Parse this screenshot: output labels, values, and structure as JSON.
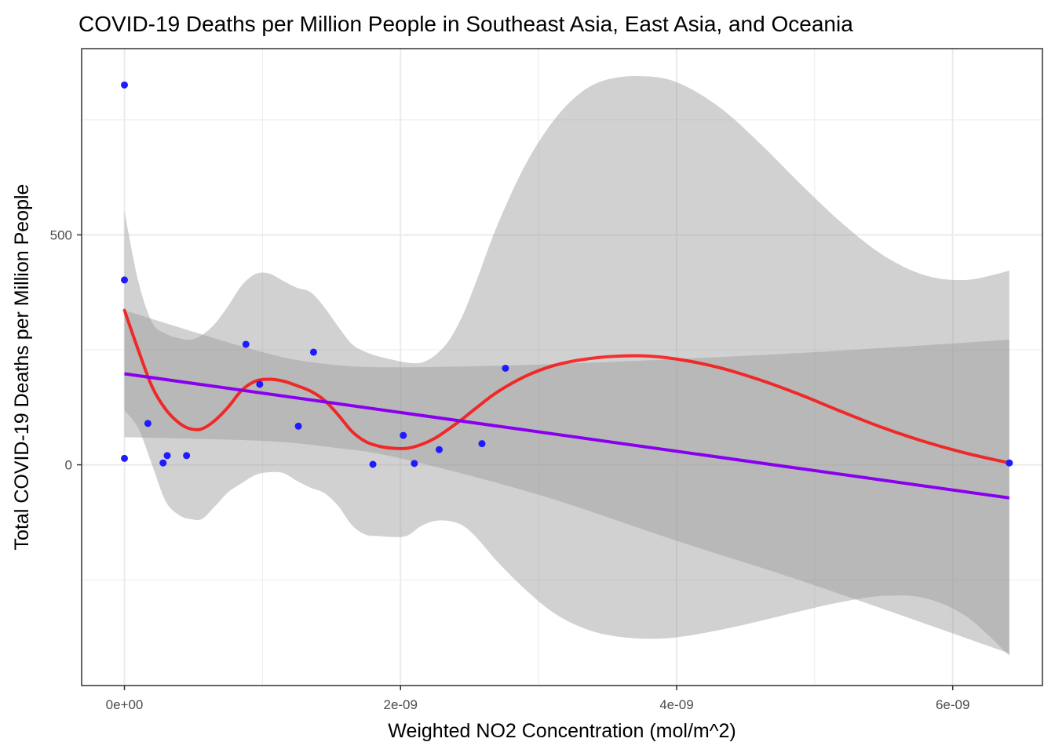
{
  "chart_data": {
    "type": "scatter",
    "title": "COVID-19 Deaths per Million People in Southeast Asia, East Asia, and Oceania",
    "xlabel": "Weighted NO2 Concentration (mol/m^2)",
    "ylabel": "Total COVID-19 Deaths per Million People",
    "xlim": [
      -3.1e-10,
      6.65e-09
    ],
    "ylim": [
      -480,
      905
    ],
    "grid": true,
    "legend": "none",
    "x_ticks": [
      {
        "value": 0,
        "label": "0e+00"
      },
      {
        "value": 2e-09,
        "label": "2e-09"
      },
      {
        "value": 4e-09,
        "label": "4e-09"
      },
      {
        "value": 6e-09,
        "label": "6e-09"
      }
    ],
    "y_ticks": [
      {
        "value": 0,
        "label": "0"
      },
      {
        "value": 500,
        "label": "500"
      }
    ],
    "x_minor_grid": [
      1e-09,
      3e-09,
      5e-09
    ],
    "y_minor_grid": [
      -250,
      250,
      750
    ],
    "colors": {
      "points": "#1f1aff",
      "loess_line": "#ff0000",
      "linear_fit": "#8800ee",
      "ribbon": "#999999",
      "grid": "#ebebeb"
    },
    "points": [
      {
        "x": 0,
        "y": 826
      },
      {
        "x": 0,
        "y": 402
      },
      {
        "x": 0,
        "y": 14
      },
      {
        "x": 1.7e-10,
        "y": 90
      },
      {
        "x": 2.8e-10,
        "y": 4
      },
      {
        "x": 3.1e-10,
        "y": 20
      },
      {
        "x": 4.5e-10,
        "y": 20
      },
      {
        "x": 8.8e-10,
        "y": 262
      },
      {
        "x": 9.8e-10,
        "y": 175
      },
      {
        "x": 1.26e-09,
        "y": 84
      },
      {
        "x": 1.37e-09,
        "y": 245
      },
      {
        "x": 1.8e-09,
        "y": 1
      },
      {
        "x": 2.02e-09,
        "y": 64
      },
      {
        "x": 2.1e-09,
        "y": 3
      },
      {
        "x": 2.28e-09,
        "y": 33
      },
      {
        "x": 2.59e-09,
        "y": 46
      },
      {
        "x": 2.76e-09,
        "y": 210
      },
      {
        "x": 6.41e-09,
        "y": 4
      }
    ],
    "loess_fit": [
      {
        "x": 0,
        "y": 336,
        "lo": 552,
        "hi_lo": 118
      },
      {
        "x": 1e-10,
        "y": 250,
        "lo": 400,
        "hi_lo": 80
      },
      {
        "x": 2e-10,
        "y": 170,
        "lo": 310,
        "hi_lo": 0
      },
      {
        "x": 3e-10,
        "y": 120,
        "lo": 285,
        "hi_lo": -80
      },
      {
        "x": 4e-10,
        "y": 90,
        "lo": 275,
        "hi_lo": -110
      },
      {
        "x": 4.8e-10,
        "y": 78,
        "lo": 272,
        "hi_lo": -118
      },
      {
        "x": 5.6e-10,
        "y": 78,
        "lo": 282,
        "hi_lo": -118
      },
      {
        "x": 6.5e-10,
        "y": 95,
        "lo": 305,
        "hi_lo": -92
      },
      {
        "x": 7.5e-10,
        "y": 125,
        "lo": 345,
        "hi_lo": -60
      },
      {
        "x": 8.5e-10,
        "y": 162,
        "lo": 390,
        "hi_lo": -40
      },
      {
        "x": 9.5e-10,
        "y": 182,
        "lo": 415,
        "hi_lo": -22
      },
      {
        "x": 1.05e-09,
        "y": 186,
        "lo": 416,
        "hi_lo": -16
      },
      {
        "x": 1.15e-09,
        "y": 182,
        "lo": 400,
        "hi_lo": -18
      },
      {
        "x": 1.25e-09,
        "y": 172,
        "lo": 385,
        "hi_lo": -35
      },
      {
        "x": 1.35e-09,
        "y": 160,
        "lo": 375,
        "hi_lo": -50
      },
      {
        "x": 1.45e-09,
        "y": 140,
        "lo": 342,
        "hi_lo": -62
      },
      {
        "x": 1.55e-09,
        "y": 108,
        "lo": 300,
        "hi_lo": -90
      },
      {
        "x": 1.65e-09,
        "y": 72,
        "lo": 262,
        "hi_lo": -132
      },
      {
        "x": 1.75e-09,
        "y": 50,
        "lo": 245,
        "hi_lo": -152
      },
      {
        "x": 1.85e-09,
        "y": 40,
        "lo": 235,
        "hi_lo": -155
      },
      {
        "x": 1.95e-09,
        "y": 36,
        "lo": 228,
        "hi_lo": -157
      },
      {
        "x": 2.05e-09,
        "y": 36,
        "lo": 222,
        "hi_lo": -154
      },
      {
        "x": 2.15e-09,
        "y": 44,
        "lo": 222,
        "hi_lo": -133
      },
      {
        "x": 2.25e-09,
        "y": 58,
        "lo": 238,
        "hi_lo": -122
      },
      {
        "x": 2.35e-09,
        "y": 78,
        "lo": 270,
        "hi_lo": -122
      },
      {
        "x": 2.45e-09,
        "y": 100,
        "lo": 325,
        "hi_lo": -132
      },
      {
        "x": 2.55e-09,
        "y": 124,
        "lo": 400,
        "hi_lo": -158
      },
      {
        "x": 2.7e-09,
        "y": 158,
        "lo": 520,
        "hi_lo": -210
      },
      {
        "x": 2.9e-09,
        "y": 192,
        "lo": 650,
        "hi_lo": -270
      },
      {
        "x": 3.1e-09,
        "y": 215,
        "lo": 745,
        "hi_lo": -320
      },
      {
        "x": 3.3e-09,
        "y": 228,
        "lo": 808,
        "hi_lo": -352
      },
      {
        "x": 3.5e-09,
        "y": 235,
        "lo": 838,
        "hi_lo": -370
      },
      {
        "x": 3.75e-09,
        "y": 237,
        "lo": 845,
        "hi_lo": -378
      },
      {
        "x": 4e-09,
        "y": 230,
        "lo": 832,
        "hi_lo": -375
      },
      {
        "x": 4.3e-09,
        "y": 212,
        "lo": 780,
        "hi_lo": -360
      },
      {
        "x": 4.6e-09,
        "y": 185,
        "lo": 700,
        "hi_lo": -340
      },
      {
        "x": 4.9e-09,
        "y": 152,
        "lo": 610,
        "hi_lo": -318
      },
      {
        "x": 5.2e-09,
        "y": 115,
        "lo": 525,
        "hi_lo": -298
      },
      {
        "x": 5.5e-09,
        "y": 80,
        "lo": 455,
        "hi_lo": -285
      },
      {
        "x": 5.8e-09,
        "y": 50,
        "lo": 412,
        "hi_lo": -290
      },
      {
        "x": 6.1e-09,
        "y": 25,
        "lo": 402,
        "hi_lo": -330
      },
      {
        "x": 6.41e-09,
        "y": 4,
        "lo": 422,
        "hi_lo": -415
      }
    ],
    "linear_fit": [
      {
        "x": 0,
        "y": 198,
        "lo": 336,
        "hi_lo": 60
      },
      {
        "x": 1e-09,
        "y": 157,
        "lo": 245,
        "hi_lo": 52
      },
      {
        "x": 1.5e-09,
        "y": 136,
        "lo": 218,
        "hi_lo": 38
      },
      {
        "x": 2e-09,
        "y": 116,
        "lo": 212,
        "hi_lo": 14
      },
      {
        "x": 3e-09,
        "y": 75,
        "lo": 218,
        "hi_lo": -65
      },
      {
        "x": 4e-09,
        "y": 34,
        "lo": 230,
        "hi_lo": -165
      },
      {
        "x": 5e-09,
        "y": -7,
        "lo": 245,
        "hi_lo": -262
      },
      {
        "x": 6.41e-09,
        "y": -72,
        "lo": 272,
        "hi_lo": -410
      }
    ]
  }
}
